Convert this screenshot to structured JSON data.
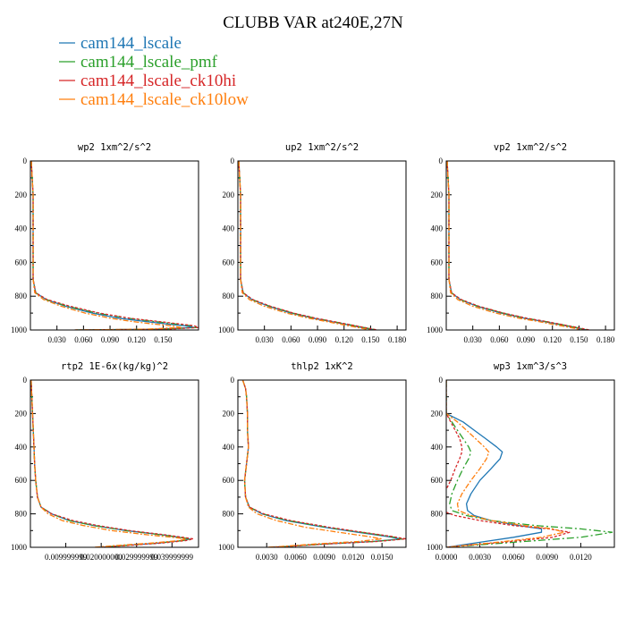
{
  "figure": {
    "title": "CLUBB VAR at240E,27N"
  },
  "legend": [
    {
      "label": "cam144_lscale",
      "color": "#1f77b4"
    },
    {
      "label": "cam144_lscale_pmf",
      "color": "#2ca02c"
    },
    {
      "label": "cam144_lscale_ck10hi",
      "color": "#d62728"
    },
    {
      "label": "cam144_lscale_ck10low",
      "color": "#ff7f0e"
    }
  ],
  "chart_data": [
    {
      "type": "line",
      "title": "wp2   1xm^2/s^2",
      "ylim": [
        0,
        1000
      ],
      "y_inverted": true,
      "yticks": [
        "0",
        "200",
        "400",
        "600",
        "800",
        "1000"
      ],
      "xlim": [
        0,
        0.19
      ],
      "xticks": [
        0.03,
        0.06,
        0.09,
        0.12,
        0.15
      ],
      "xtick_labels": [
        "0.030",
        "0.060",
        "0.090",
        "0.120",
        "0.150"
      ],
      "y": [
        0,
        100,
        200,
        300,
        400,
        500,
        600,
        700,
        780,
        820,
        860,
        900,
        930,
        950,
        965,
        975,
        985,
        995,
        1000
      ],
      "series": [
        {
          "name": "cam144_lscale",
          "x": [
            0.001,
            0.002,
            0.003,
            0.003,
            0.003,
            0.003,
            0.003,
            0.003,
            0.006,
            0.018,
            0.04,
            0.07,
            0.1,
            0.13,
            0.155,
            0.175,
            0.185,
            0.14,
            0.05
          ]
        },
        {
          "name": "cam144_lscale_pmf",
          "x": [
            0.001,
            0.002,
            0.003,
            0.003,
            0.003,
            0.003,
            0.003,
            0.003,
            0.006,
            0.018,
            0.042,
            0.075,
            0.11,
            0.14,
            0.165,
            0.182,
            0.19,
            0.15,
            0.05
          ]
        },
        {
          "name": "cam144_lscale_ck10hi",
          "x": [
            0.001,
            0.002,
            0.003,
            0.003,
            0.003,
            0.003,
            0.003,
            0.003,
            0.006,
            0.019,
            0.045,
            0.078,
            0.112,
            0.145,
            0.17,
            0.185,
            0.19,
            0.155,
            0.05
          ]
        },
        {
          "name": "cam144_lscale_ck10low",
          "x": [
            0.001,
            0.002,
            0.003,
            0.003,
            0.003,
            0.003,
            0.003,
            0.003,
            0.005,
            0.015,
            0.035,
            0.062,
            0.09,
            0.115,
            0.14,
            0.16,
            0.17,
            0.13,
            0.05
          ]
        }
      ]
    },
    {
      "type": "line",
      "title": "up2   1xm^2/s^2",
      "ylim": [
        0,
        1000
      ],
      "y_inverted": true,
      "yticks": [
        "0",
        "200",
        "400",
        "600",
        "800",
        "1000"
      ],
      "xlim": [
        0,
        0.19
      ],
      "xticks": [
        0.03,
        0.06,
        0.09,
        0.12,
        0.15,
        0.18
      ],
      "xtick_labels": [
        "0.030",
        "0.060",
        "0.090",
        "0.120",
        "0.150",
        "0.180"
      ],
      "y": [
        0,
        100,
        200,
        300,
        400,
        500,
        600,
        700,
        780,
        820,
        860,
        900,
        930,
        950,
        970,
        985,
        1000
      ],
      "series": [
        {
          "name": "cam144_lscale",
          "x": [
            0.001,
            0.002,
            0.003,
            0.003,
            0.003,
            0.003,
            0.003,
            0.003,
            0.006,
            0.016,
            0.035,
            0.06,
            0.085,
            0.105,
            0.125,
            0.14,
            0.155
          ]
        },
        {
          "name": "cam144_lscale_pmf",
          "x": [
            0.001,
            0.002,
            0.003,
            0.003,
            0.003,
            0.003,
            0.003,
            0.003,
            0.006,
            0.016,
            0.036,
            0.062,
            0.087,
            0.107,
            0.127,
            0.142,
            0.157
          ]
        },
        {
          "name": "cam144_lscale_ck10hi",
          "x": [
            0.001,
            0.002,
            0.003,
            0.003,
            0.003,
            0.003,
            0.003,
            0.003,
            0.006,
            0.017,
            0.037,
            0.063,
            0.088,
            0.108,
            0.128,
            0.143,
            0.158
          ]
        },
        {
          "name": "cam144_lscale_ck10low",
          "x": [
            0.001,
            0.002,
            0.003,
            0.003,
            0.003,
            0.003,
            0.003,
            0.003,
            0.005,
            0.013,
            0.03,
            0.055,
            0.08,
            0.1,
            0.12,
            0.135,
            0.15
          ]
        }
      ]
    },
    {
      "type": "line",
      "title": "vp2   1xm^2/s^2",
      "ylim": [
        0,
        1000
      ],
      "y_inverted": true,
      "yticks": [
        "0",
        "200",
        "400",
        "600",
        "800",
        "1000"
      ],
      "xlim": [
        0,
        0.19
      ],
      "xticks": [
        0.03,
        0.06,
        0.09,
        0.12,
        0.15,
        0.18
      ],
      "xtick_labels": [
        "0.030",
        "0.060",
        "0.090",
        "0.120",
        "0.150",
        "0.180"
      ],
      "y": [
        0,
        100,
        200,
        300,
        400,
        500,
        600,
        700,
        780,
        820,
        860,
        900,
        930,
        950,
        970,
        985,
        1000
      ],
      "series": [
        {
          "name": "cam144_lscale",
          "x": [
            0.001,
            0.002,
            0.003,
            0.003,
            0.003,
            0.003,
            0.003,
            0.003,
            0.006,
            0.016,
            0.035,
            0.062,
            0.088,
            0.11,
            0.13,
            0.145,
            0.158
          ]
        },
        {
          "name": "cam144_lscale_pmf",
          "x": [
            0.001,
            0.002,
            0.003,
            0.003,
            0.003,
            0.003,
            0.003,
            0.003,
            0.006,
            0.016,
            0.036,
            0.064,
            0.09,
            0.112,
            0.132,
            0.147,
            0.16
          ]
        },
        {
          "name": "cam144_lscale_ck10hi",
          "x": [
            0.001,
            0.002,
            0.003,
            0.003,
            0.003,
            0.003,
            0.003,
            0.003,
            0.006,
            0.017,
            0.037,
            0.065,
            0.091,
            0.113,
            0.133,
            0.148,
            0.162
          ]
        },
        {
          "name": "cam144_lscale_ck10low",
          "x": [
            0.001,
            0.002,
            0.003,
            0.003,
            0.003,
            0.003,
            0.003,
            0.003,
            0.005,
            0.013,
            0.03,
            0.056,
            0.082,
            0.104,
            0.124,
            0.14,
            0.154
          ]
        }
      ]
    },
    {
      "type": "line",
      "title": "rtp2   1E-6x(kg/kg)^2",
      "ylim": [
        0,
        1000
      ],
      "y_inverted": true,
      "yticks": [
        "0",
        "200",
        "400",
        "600",
        "800",
        "1000"
      ],
      "xlim": [
        0,
        0.0475
      ],
      "xticks": [
        0.01,
        0.02,
        0.03,
        0.04
      ],
      "xtick_labels": [
        "0.009999999",
        "0.020000000",
        "0.029999999",
        "0.039999999"
      ],
      "y": [
        0,
        100,
        200,
        300,
        400,
        500,
        600,
        700,
        760,
        800,
        840,
        870,
        900,
        925,
        940,
        950,
        960,
        975,
        990,
        1000
      ],
      "series": [
        {
          "name": "cam144_lscale",
          "x": [
            0.0002,
            0.0004,
            0.0006,
            0.0008,
            0.001,
            0.0012,
            0.0015,
            0.002,
            0.003,
            0.006,
            0.011,
            0.018,
            0.027,
            0.037,
            0.042,
            0.045,
            0.043,
            0.036,
            0.026,
            0.02
          ]
        },
        {
          "name": "cam144_lscale_pmf",
          "x": [
            0.0002,
            0.0004,
            0.0006,
            0.0008,
            0.001,
            0.0012,
            0.0015,
            0.002,
            0.003,
            0.006,
            0.011,
            0.018,
            0.027,
            0.037,
            0.042,
            0.045,
            0.043,
            0.036,
            0.026,
            0.02
          ]
        },
        {
          "name": "cam144_lscale_ck10hi",
          "x": [
            0.0002,
            0.0004,
            0.0006,
            0.0008,
            0.001,
            0.0012,
            0.0015,
            0.002,
            0.003,
            0.006,
            0.012,
            0.019,
            0.028,
            0.038,
            0.043,
            0.046,
            0.044,
            0.037,
            0.027,
            0.02
          ]
        },
        {
          "name": "cam144_lscale_ck10low",
          "x": [
            0.0002,
            0.0004,
            0.0006,
            0.0008,
            0.001,
            0.0012,
            0.0015,
            0.002,
            0.003,
            0.005,
            0.009,
            0.015,
            0.023,
            0.033,
            0.04,
            0.044,
            0.042,
            0.034,
            0.024,
            0.018
          ]
        }
      ]
    },
    {
      "type": "line",
      "title": "thlp2   1xK^2",
      "ylim": [
        0,
        1000
      ],
      "y_inverted": true,
      "yticks": [
        "0",
        "200",
        "400",
        "600",
        "800",
        "1000"
      ],
      "xlim": [
        0,
        0.0175
      ],
      "xticks": [
        0.003,
        0.006,
        0.009,
        0.012,
        0.015
      ],
      "xtick_labels": [
        "0.0030",
        "0.0060",
        "0.0090",
        "0.0120",
        "0.0150"
      ],
      "y": [
        0,
        50,
        100,
        200,
        300,
        400,
        500,
        600,
        700,
        760,
        800,
        840,
        880,
        910,
        935,
        950,
        965,
        980,
        995,
        1000
      ],
      "series": [
        {
          "name": "cam144_lscale",
          "x": [
            0.0005,
            0.0008,
            0.0009,
            0.001,
            0.001,
            0.0011,
            0.0009,
            0.0007,
            0.0008,
            0.0012,
            0.0025,
            0.005,
            0.009,
            0.0125,
            0.0155,
            0.017,
            0.014,
            0.009,
            0.005,
            0.0035
          ]
        },
        {
          "name": "cam144_lscale_pmf",
          "x": [
            0.0005,
            0.0008,
            0.0009,
            0.001,
            0.001,
            0.0011,
            0.0009,
            0.0007,
            0.0008,
            0.0012,
            0.0026,
            0.0052,
            0.0092,
            0.0128,
            0.0158,
            0.0172,
            0.0142,
            0.009,
            0.005,
            0.0035
          ]
        },
        {
          "name": "cam144_lscale_ck10hi",
          "x": [
            0.0005,
            0.0008,
            0.0009,
            0.001,
            0.001,
            0.0011,
            0.0009,
            0.0007,
            0.0008,
            0.0012,
            0.0027,
            0.0055,
            0.0095,
            0.013,
            0.016,
            0.0175,
            0.0145,
            0.0092,
            0.005,
            0.0035
          ]
        },
        {
          "name": "cam144_lscale_ck10low",
          "x": [
            0.0005,
            0.0008,
            0.0009,
            0.001,
            0.001,
            0.0011,
            0.0009,
            0.0007,
            0.0008,
            0.0011,
            0.002,
            0.004,
            0.007,
            0.0105,
            0.0135,
            0.015,
            0.0125,
            0.008,
            0.0045,
            0.003
          ]
        }
      ]
    },
    {
      "type": "line",
      "title": "wp3   1xm^3/s^3",
      "ylim": [
        0,
        1000
      ],
      "y_inverted": true,
      "yticks": [
        "0",
        "200",
        "400",
        "600",
        "800",
        "1000"
      ],
      "xlim": [
        0,
        0.015
      ],
      "xticks": [
        0,
        0.003,
        0.006,
        0.009,
        0.012
      ],
      "xtick_labels": [
        "0.0000",
        "0.0030",
        "0.0060",
        "0.0090",
        "0.0120"
      ],
      "y": [
        0,
        100,
        200,
        250,
        300,
        350,
        400,
        430,
        470,
        530,
        600,
        680,
        740,
        780,
        810,
        840,
        870,
        890,
        910,
        940,
        970,
        990,
        1000
      ],
      "series": [
        {
          "name": "cam144_lscale",
          "x": [
            0.0,
            0.0,
            0.0,
            0.0015,
            0.0025,
            0.0035,
            0.0045,
            0.005,
            0.0048,
            0.004,
            0.003,
            0.0022,
            0.0018,
            0.0019,
            0.0025,
            0.004,
            0.0065,
            0.0085,
            0.0085,
            0.006,
            0.003,
            0.001,
            0.0
          ]
        },
        {
          "name": "cam144_lscale_pmf",
          "x": [
            0.0,
            0.0,
            0.0,
            0.0005,
            0.001,
            0.0015,
            0.002,
            0.0022,
            0.002,
            0.0015,
            0.001,
            0.0005,
            0.0003,
            0.0005,
            0.0018,
            0.004,
            0.008,
            0.012,
            0.0148,
            0.012,
            0.006,
            0.002,
            0.0
          ]
        },
        {
          "name": "cam144_lscale_ck10hi",
          "x": [
            0.0,
            0.0,
            0.0,
            0.0004,
            0.0008,
            0.0012,
            0.0014,
            0.0014,
            0.0012,
            0.0008,
            0.0004,
            -0.0002,
            -0.0005,
            -0.0004,
            0.0008,
            0.003,
            0.006,
            0.0092,
            0.011,
            0.0095,
            0.005,
            0.0015,
            0.0
          ]
        },
        {
          "name": "cam144_lscale_ck10low",
          "x": [
            0.0,
            0.0,
            0.0,
            0.001,
            0.0018,
            0.0026,
            0.0034,
            0.0038,
            0.0036,
            0.003,
            0.0022,
            0.0014,
            0.001,
            0.0011,
            0.0022,
            0.004,
            0.007,
            0.0095,
            0.0105,
            0.0085,
            0.0045,
            0.0015,
            0.0
          ]
        }
      ]
    }
  ]
}
